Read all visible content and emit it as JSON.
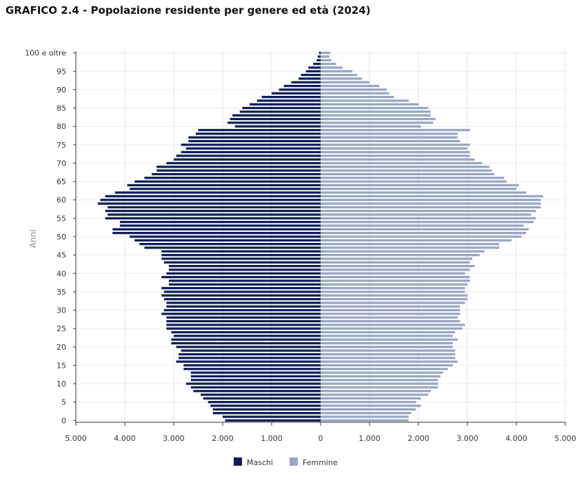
{
  "title": "GRAFICO 2.4 - Popolazione residente per genere ed età (2024)",
  "chart_data": {
    "type": "bar",
    "orientation": "horizontal",
    "layout": "population-pyramid",
    "title": "GRAFICO 2.4 - Popolazione residente per genere ed età (2024)",
    "ylabel": "Anni",
    "xlabel": "",
    "y_tick_labels": [
      "0",
      "5",
      "10",
      "15",
      "20",
      "25",
      "30",
      "35",
      "40",
      "45",
      "50",
      "55",
      "60",
      "65",
      "70",
      "75",
      "80",
      "85",
      "90",
      "95",
      "100 e oltre"
    ],
    "x_tick_labels": [
      "5.000",
      "4.000",
      "3.000",
      "2.000",
      "1.000",
      "0",
      "1.000",
      "2.000",
      "3.000",
      "4.000",
      "5.000"
    ],
    "xlim": [
      -5000,
      5000
    ],
    "grid": true,
    "legend_position": "bottom-center",
    "colors": {
      "Maschi": "#0f1e56",
      "Femmine": "#97a6c4"
    },
    "categories": [
      "0",
      "1",
      "2",
      "3",
      "4",
      "5",
      "6",
      "7",
      "8",
      "9",
      "10",
      "11",
      "12",
      "13",
      "14",
      "15",
      "16",
      "17",
      "18",
      "19",
      "20",
      "21",
      "22",
      "23",
      "24",
      "25",
      "26",
      "27",
      "28",
      "29",
      "30",
      "31",
      "32",
      "33",
      "34",
      "35",
      "36",
      "37",
      "38",
      "39",
      "40",
      "41",
      "42",
      "43",
      "44",
      "45",
      "46",
      "47",
      "48",
      "49",
      "50",
      "51",
      "52",
      "53",
      "54",
      "55",
      "56",
      "57",
      "58",
      "59",
      "60",
      "61",
      "62",
      "63",
      "64",
      "65",
      "66",
      "67",
      "68",
      "69",
      "70",
      "71",
      "72",
      "73",
      "74",
      "75",
      "76",
      "77",
      "78",
      "79",
      "80",
      "81",
      "82",
      "83",
      "84",
      "85",
      "86",
      "87",
      "88",
      "89",
      "90",
      "91",
      "92",
      "93",
      "94",
      "95",
      "96",
      "97",
      "98",
      "99",
      "100 e oltre"
    ],
    "series": [
      {
        "name": "Maschi",
        "values": [
          1950,
          2000,
          2200,
          2200,
          2250,
          2300,
          2400,
          2450,
          2600,
          2650,
          2750,
          2650,
          2650,
          2650,
          2800,
          2800,
          2950,
          2900,
          2900,
          2850,
          2950,
          3050,
          3050,
          3000,
          3050,
          3150,
          3150,
          3150,
          3150,
          3250,
          3200,
          3150,
          3150,
          3200,
          3250,
          3200,
          3250,
          3100,
          3100,
          3250,
          3150,
          3100,
          3100,
          3200,
          3250,
          3250,
          3250,
          3600,
          3700,
          3800,
          3900,
          4250,
          4250,
          4100,
          4100,
          4400,
          4350,
          4400,
          4350,
          4550,
          4500,
          4400,
          4200,
          3900,
          3950,
          3800,
          3600,
          3450,
          3350,
          3350,
          3150,
          3000,
          2950,
          2850,
          2750,
          2850,
          2700,
          2700,
          2550,
          2500,
          1750,
          1900,
          1850,
          1800,
          1650,
          1600,
          1450,
          1300,
          1200,
          1000,
          850,
          750,
          600,
          450,
          400,
          300,
          250,
          150,
          80,
          60,
          30
        ]
      },
      {
        "name": "Femmine",
        "values": [
          1800,
          1800,
          1850,
          1950,
          2050,
          1950,
          2050,
          2200,
          2250,
          2400,
          2400,
          2400,
          2450,
          2500,
          2600,
          2700,
          2800,
          2750,
          2750,
          2750,
          2700,
          2700,
          2800,
          2700,
          2750,
          2900,
          2950,
          2850,
          2800,
          2850,
          2850,
          2850,
          2950,
          3000,
          3000,
          2950,
          2950,
          3000,
          3050,
          3050,
          2950,
          3050,
          3150,
          3050,
          3100,
          3250,
          3350,
          3650,
          3650,
          3900,
          4100,
          4200,
          4250,
          4150,
          4350,
          4400,
          4300,
          4400,
          4500,
          4500,
          4500,
          4550,
          4200,
          4000,
          4050,
          3800,
          3750,
          3550,
          3500,
          3450,
          3300,
          3150,
          3050,
          3050,
          3000,
          3050,
          2850,
          2800,
          2800,
          3050,
          2050,
          2300,
          2350,
          2250,
          2250,
          2200,
          2000,
          1800,
          1500,
          1400,
          1350,
          1200,
          1000,
          850,
          750,
          650,
          450,
          320,
          220,
          180,
          200
        ]
      }
    ]
  },
  "legend": [
    {
      "label": "Maschi",
      "color": "#0f1e56"
    },
    {
      "label": "Femmine",
      "color": "#97a6c4"
    }
  ]
}
